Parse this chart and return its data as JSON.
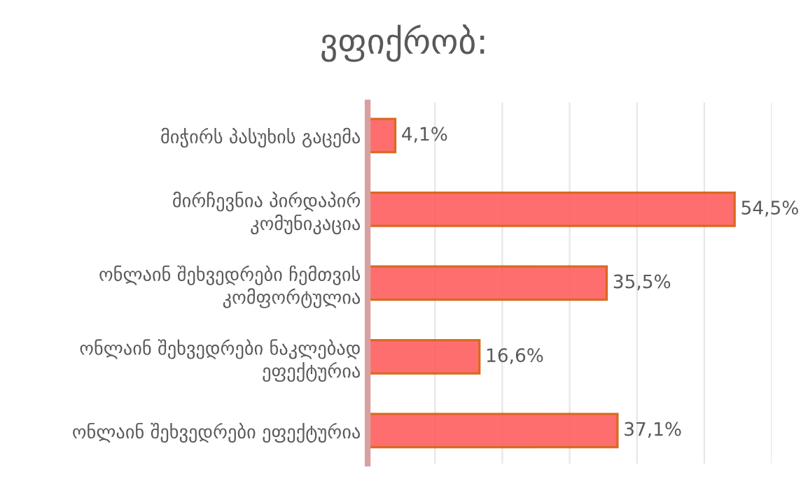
{
  "chart_data": {
    "type": "bar",
    "orientation": "horizontal",
    "title": "ვფიქრობ:",
    "categories": [
      "მიჭირს პასუხის გაცემა",
      "მირჩევნია პირდაპირ კომუნიკაცია",
      "ონლაინ შეხვედრები ჩემთვის კომფორტულია",
      "ონლაინ შეხვედრები ნაკლებად ეფექტურია",
      "ონლაინ შეხვედრები ეფექტურია"
    ],
    "values": [
      4.1,
      54.5,
      35.5,
      16.6,
      37.1
    ],
    "value_labels": [
      "4,1%",
      "54,5%",
      "35,5%",
      "16,6%",
      "37,1%"
    ],
    "color": "#ff5f5f",
    "xlim": [
      0,
      60
    ],
    "xticks": [
      {
        "value": 0,
        "label": null
      },
      {
        "value": 10,
        "label": null
      },
      {
        "value": 20,
        "label": null
      },
      {
        "value": 30,
        "label": null
      },
      {
        "value": 40,
        "label": null
      },
      {
        "value": 50,
        "label": null
      },
      {
        "value": 60,
        "label": null
      }
    ],
    "grid": "x",
    "tick_labels": "y"
  }
}
